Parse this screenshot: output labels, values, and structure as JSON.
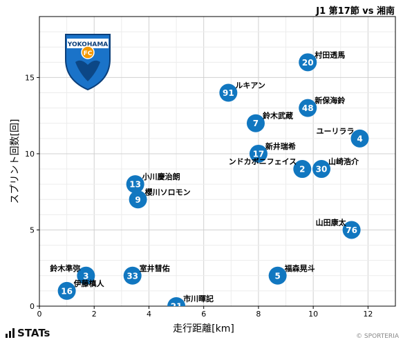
{
  "header": {
    "title": "J1 第17節 vs 湘南"
  },
  "footer": {
    "brand": "STATs",
    "copyright": "© SPORTERIA"
  },
  "logo": {
    "text": "YOKOHAMA",
    "emblem": "FC"
  },
  "colors": {
    "marker": "#1177c0",
    "grid": "#dcdcdc",
    "text": "#000000"
  },
  "chart_data": {
    "type": "scatter",
    "xlabel": "走行距離[km]",
    "ylabel": "スプリント回数[回]",
    "xlim": [
      0,
      13
    ],
    "ylim": [
      0,
      19
    ],
    "xticks": [
      0,
      2,
      4,
      6,
      8,
      10,
      12
    ],
    "yticks": [
      0,
      5,
      10,
      15
    ],
    "grid": true,
    "points": [
      {
        "number": "20",
        "name": "村田透馬",
        "x": 9.8,
        "y": 16
      },
      {
        "number": "91",
        "name": "ルキアン",
        "x": 6.9,
        "y": 14
      },
      {
        "number": "48",
        "name": "新保海鈴",
        "x": 9.8,
        "y": 13
      },
      {
        "number": "7",
        "name": "鈴木武蔵",
        "x": 7.9,
        "y": 12
      },
      {
        "number": "4",
        "name": "ユーリララ",
        "x": 11.7,
        "y": 11
      },
      {
        "number": "17",
        "name": "新井瑞希",
        "x": 8.0,
        "y": 10
      },
      {
        "number": "2",
        "name": "ンドカボニフェイス",
        "x": 9.6,
        "y": 9
      },
      {
        "number": "30",
        "name": "山崎浩介",
        "x": 10.3,
        "y": 9
      },
      {
        "number": "13",
        "name": "小川慶治朗",
        "x": 3.5,
        "y": 8
      },
      {
        "number": "9",
        "name": "櫻川ソロモン",
        "x": 3.6,
        "y": 7
      },
      {
        "number": "76",
        "name": "山田康太",
        "x": 11.4,
        "y": 5
      },
      {
        "number": "3",
        "name": "鈴木準弥",
        "x": 1.7,
        "y": 2
      },
      {
        "number": "33",
        "name": "室井彗佑",
        "x": 3.4,
        "y": 2
      },
      {
        "number": "5",
        "name": "福森晃斗",
        "x": 8.7,
        "y": 2
      },
      {
        "number": "16",
        "name": "伊藤槙人",
        "x": 1.0,
        "y": 1
      },
      {
        "number": "21",
        "name": "市川暉記",
        "x": 5.0,
        "y": 0
      }
    ]
  }
}
